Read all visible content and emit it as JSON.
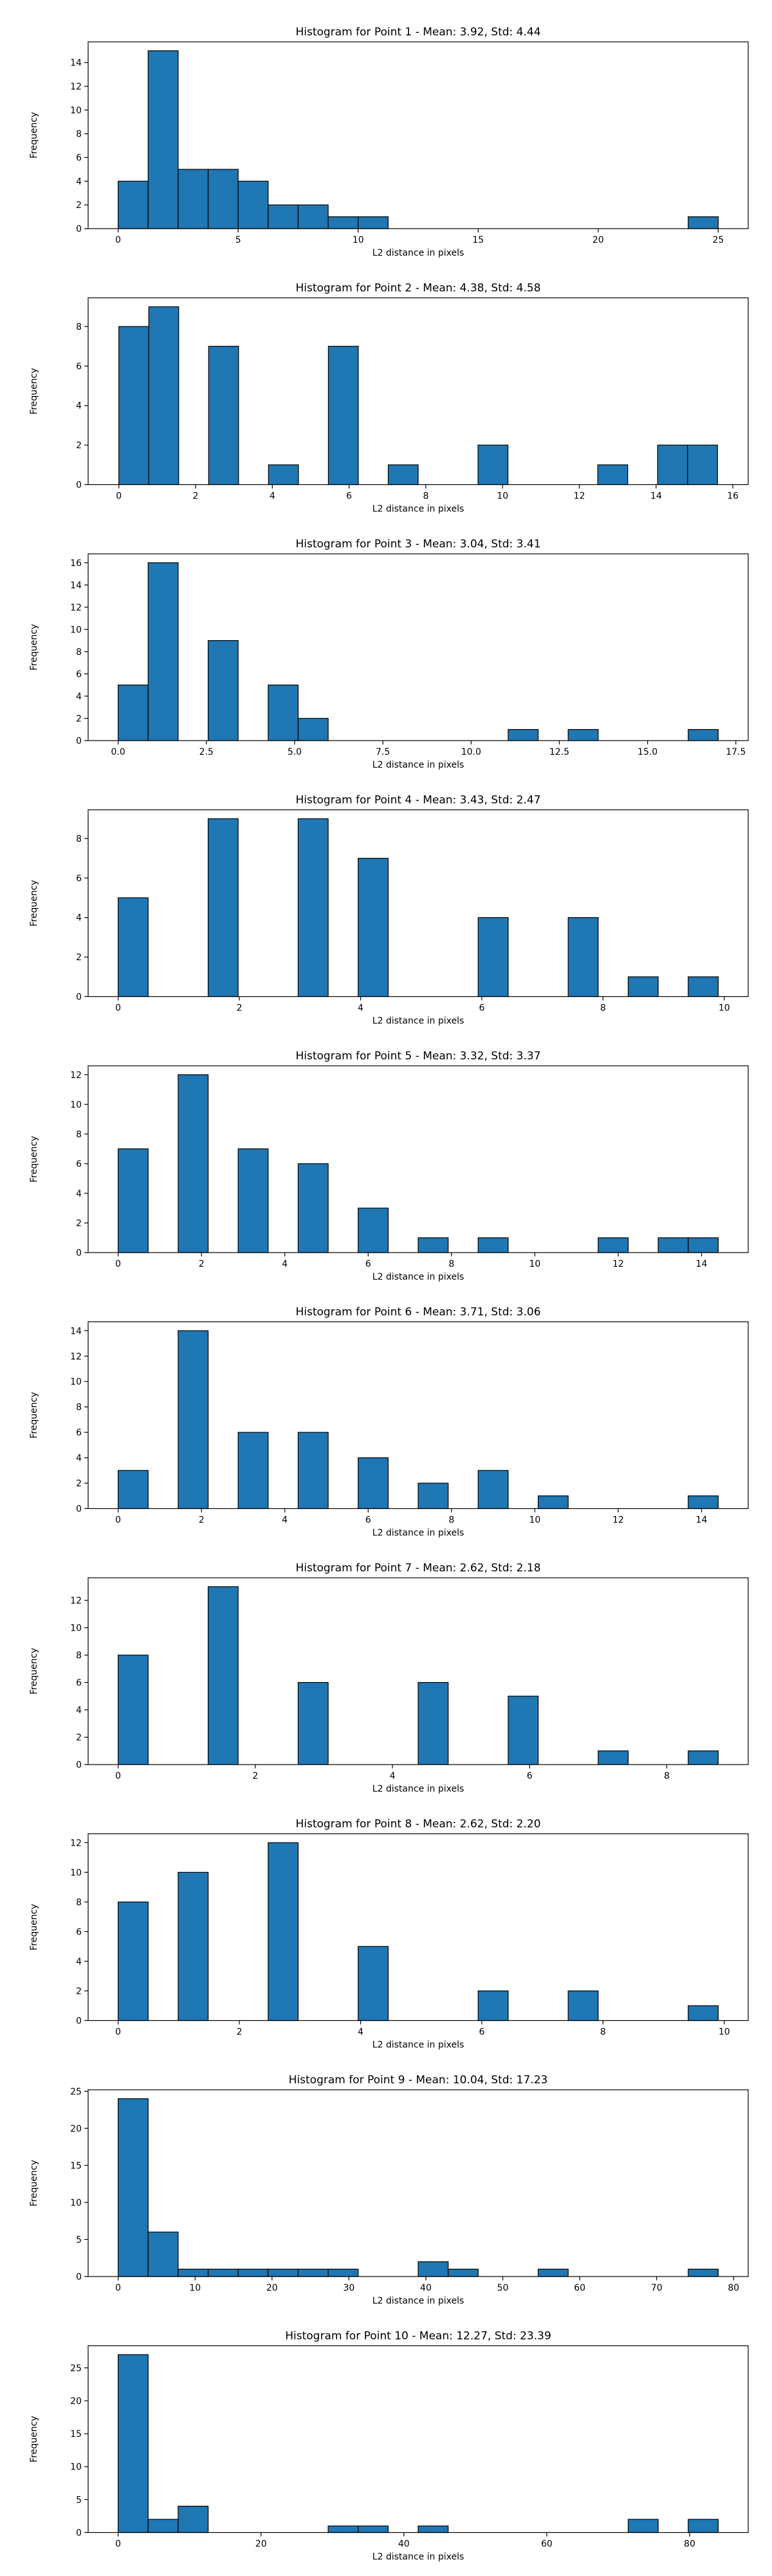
{
  "chart_data": [
    {
      "type": "bar",
      "title": "Histogram for Point 1 - Mean: 3.92, Std: 4.44",
      "xlabel": "L2 distance in pixels",
      "ylabel": "Frequency",
      "xlim": [
        -1.25,
        26.25
      ],
      "ylim": [
        0,
        15.75
      ],
      "xticks": [
        0,
        5,
        10,
        15,
        20,
        25
      ],
      "xtick_labels": [
        "0",
        "5",
        "10",
        "15",
        "20",
        "25"
      ],
      "yticks": [
        0,
        2,
        4,
        6,
        8,
        10,
        12,
        14
      ],
      "ytick_labels": [
        "0",
        "2",
        "4",
        "6",
        "8",
        "10",
        "12",
        "14"
      ],
      "bin_start": 0,
      "bin_width": 1.25,
      "values": [
        4,
        15,
        5,
        5,
        4,
        2,
        2,
        1,
        1,
        0,
        0,
        0,
        0,
        0,
        0,
        0,
        0,
        0,
        0,
        1
      ],
      "bar_color": "#1f77b4",
      "edge_color": "#000000"
    },
    {
      "type": "bar",
      "title": "Histogram for Point 2 - Mean: 4.38, Std: 4.58",
      "xlabel": "L2 distance in pixels",
      "ylabel": "Frequency",
      "xlim": [
        -0.8,
        16.4
      ],
      "ylim": [
        0,
        9.45
      ],
      "xticks": [
        0,
        2,
        4,
        6,
        8,
        10,
        12,
        14,
        16
      ],
      "xtick_labels": [
        "0",
        "2",
        "4",
        "6",
        "8",
        "10",
        "12",
        "14",
        "16"
      ],
      "yticks": [
        0,
        2,
        4,
        6,
        8
      ],
      "ytick_labels": [
        "0",
        "2",
        "4",
        "6",
        "8"
      ],
      "bin_start": 0,
      "bin_width": 0.78,
      "values": [
        8,
        9,
        0,
        7,
        0,
        1,
        0,
        7,
        0,
        1,
        0,
        0,
        2,
        0,
        0,
        0,
        1,
        0,
        2,
        2
      ],
      "bar_color": "#1f77b4",
      "edge_color": "#000000"
    },
    {
      "type": "bar",
      "title": "Histogram for Point 3 - Mean: 3.04, Std: 3.41",
      "xlabel": "L2 distance in pixels",
      "ylabel": "Frequency",
      "xlim": [
        -0.85,
        17.85
      ],
      "ylim": [
        0,
        16.8
      ],
      "xticks": [
        0,
        2.5,
        5,
        7.5,
        10,
        12.5,
        15,
        17.5
      ],
      "xtick_labels": [
        "0.0",
        "2.5",
        "5.0",
        "7.5",
        "10.0",
        "12.5",
        "15.0",
        "17.5"
      ],
      "yticks": [
        0,
        2,
        4,
        6,
        8,
        10,
        12,
        14,
        16
      ],
      "ytick_labels": [
        "0",
        "2",
        "4",
        "6",
        "8",
        "10",
        "12",
        "14",
        "16"
      ],
      "bin_start": 0,
      "bin_width": 0.85,
      "values": [
        5,
        16,
        0,
        9,
        0,
        5,
        2,
        0,
        0,
        0,
        0,
        0,
        0,
        1,
        0,
        1,
        0,
        0,
        0,
        1
      ],
      "bar_color": "#1f77b4",
      "edge_color": "#000000"
    },
    {
      "type": "bar",
      "title": "Histogram for Point 4 - Mean: 3.43, Std: 2.47",
      "xlabel": "L2 distance in pixels",
      "ylabel": "Frequency",
      "xlim": [
        -0.495,
        10.395
      ],
      "ylim": [
        0,
        9.45
      ],
      "xticks": [
        0,
        2,
        4,
        6,
        8,
        10
      ],
      "xtick_labels": [
        "0",
        "2",
        "4",
        "6",
        "8",
        "10"
      ],
      "yticks": [
        0,
        2,
        4,
        6,
        8
      ],
      "ytick_labels": [
        "0",
        "2",
        "4",
        "6",
        "8"
      ],
      "bin_start": 0,
      "bin_width": 0.495,
      "values": [
        5,
        0,
        0,
        9,
        0,
        0,
        9,
        0,
        7,
        0,
        0,
        0,
        4,
        0,
        0,
        4,
        0,
        1,
        0,
        1
      ],
      "bar_color": "#1f77b4",
      "edge_color": "#000000"
    },
    {
      "type": "bar",
      "title": "Histogram for Point 5 - Mean: 3.32, Std: 3.37",
      "xlabel": "L2 distance in pixels",
      "ylabel": "Frequency",
      "xlim": [
        -0.72,
        15.12
      ],
      "ylim": [
        0,
        12.6
      ],
      "xticks": [
        0,
        2,
        4,
        6,
        8,
        10,
        12,
        14
      ],
      "xtick_labels": [
        "0",
        "2",
        "4",
        "6",
        "8",
        "10",
        "12",
        "14"
      ],
      "yticks": [
        0,
        2,
        4,
        6,
        8,
        10,
        12
      ],
      "ytick_labels": [
        "0",
        "2",
        "4",
        "6",
        "8",
        "10",
        "12"
      ],
      "bin_start": 0,
      "bin_width": 0.72,
      "values": [
        7,
        0,
        12,
        0,
        7,
        0,
        6,
        0,
        3,
        0,
        1,
        0,
        1,
        0,
        0,
        0,
        1,
        0,
        1,
        1
      ],
      "bar_color": "#1f77b4",
      "edge_color": "#000000"
    },
    {
      "type": "bar",
      "title": "Histogram for Point 6 - Mean: 3.71, Std: 3.06",
      "xlabel": "L2 distance in pixels",
      "ylabel": "Frequency",
      "xlim": [
        -0.72,
        15.12
      ],
      "ylim": [
        0,
        14.7
      ],
      "xticks": [
        0,
        2,
        4,
        6,
        8,
        10,
        12,
        14
      ],
      "xtick_labels": [
        "0",
        "2",
        "4",
        "6",
        "8",
        "10",
        "12",
        "14"
      ],
      "yticks": [
        0,
        2,
        4,
        6,
        8,
        10,
        12,
        14
      ],
      "ytick_labels": [
        "0",
        "2",
        "4",
        "6",
        "8",
        "10",
        "12",
        "14"
      ],
      "bin_start": 0,
      "bin_width": 0.72,
      "values": [
        3,
        0,
        14,
        0,
        6,
        0,
        6,
        0,
        4,
        0,
        2,
        0,
        3,
        0,
        1,
        0,
        0,
        0,
        0,
        1
      ],
      "bar_color": "#1f77b4",
      "edge_color": "#000000"
    },
    {
      "type": "bar",
      "title": "Histogram for Point 7 - Mean: 2.62, Std: 2.18",
      "xlabel": "L2 distance in pixels",
      "ylabel": "Frequency",
      "xlim": [
        -0.4375,
        9.1875
      ],
      "ylim": [
        0,
        13.65
      ],
      "xticks": [
        0,
        2,
        4,
        6,
        8
      ],
      "xtick_labels": [
        "0",
        "2",
        "4",
        "6",
        "8"
      ],
      "yticks": [
        0,
        2,
        4,
        6,
        8,
        10,
        12
      ],
      "ytick_labels": [
        "0",
        "2",
        "4",
        "6",
        "8",
        "10",
        "12"
      ],
      "bin_start": 0,
      "bin_width": 0.4375,
      "values": [
        8,
        0,
        0,
        13,
        0,
        0,
        6,
        0,
        0,
        0,
        6,
        0,
        0,
        5,
        0,
        0,
        1,
        0,
        0,
        1
      ],
      "bar_color": "#1f77b4",
      "edge_color": "#000000"
    },
    {
      "type": "bar",
      "title": "Histogram for Point 8 - Mean: 2.62, Std: 2.20",
      "xlabel": "L2 distance in pixels",
      "ylabel": "Frequency",
      "xlim": [
        -0.495,
        10.395
      ],
      "ylim": [
        0,
        12.6
      ],
      "xticks": [
        0,
        2,
        4,
        6,
        8,
        10
      ],
      "xtick_labels": [
        "0",
        "2",
        "4",
        "6",
        "8",
        "10"
      ],
      "yticks": [
        0,
        2,
        4,
        6,
        8,
        10,
        12
      ],
      "ytick_labels": [
        "0",
        "2",
        "4",
        "6",
        "8",
        "10",
        "12"
      ],
      "bin_start": 0,
      "bin_width": 0.495,
      "values": [
        8,
        0,
        10,
        0,
        0,
        12,
        0,
        0,
        5,
        0,
        0,
        0,
        2,
        0,
        0,
        2,
        0,
        0,
        0,
        1
      ],
      "bar_color": "#1f77b4",
      "edge_color": "#000000"
    },
    {
      "type": "bar",
      "title": "Histogram for Point 9 - Mean: 10.04, Std: 17.23",
      "xlabel": "L2 distance in pixels",
      "ylabel": "Frequency",
      "xlim": [
        -3.9,
        81.9
      ],
      "ylim": [
        0,
        25.2
      ],
      "xticks": [
        0,
        10,
        20,
        30,
        40,
        50,
        60,
        70,
        80
      ],
      "xtick_labels": [
        "0",
        "10",
        "20",
        "30",
        "40",
        "50",
        "60",
        "70",
        "80"
      ],
      "yticks": [
        0,
        5,
        10,
        15,
        20,
        25
      ],
      "ytick_labels": [
        "0",
        "5",
        "10",
        "15",
        "20",
        "25"
      ],
      "bin_start": 0,
      "bin_width": 3.9,
      "values": [
        24,
        6,
        1,
        1,
        1,
        1,
        1,
        1,
        0,
        0,
        2,
        1,
        0,
        0,
        1,
        0,
        0,
        0,
        0,
        1
      ],
      "bar_color": "#1f77b4",
      "edge_color": "#000000"
    },
    {
      "type": "bar",
      "title": "Histogram for Point 10 - Mean: 12.27, Std: 23.39",
      "xlabel": "L2 distance in pixels",
      "ylabel": "Frequency",
      "xlim": [
        -4.2,
        88.2
      ],
      "ylim": [
        0,
        28.35
      ],
      "xticks": [
        0,
        20,
        40,
        60,
        80
      ],
      "xtick_labels": [
        "0",
        "20",
        "40",
        "60",
        "80"
      ],
      "yticks": [
        0,
        5,
        10,
        15,
        20,
        25
      ],
      "ytick_labels": [
        "0",
        "5",
        "10",
        "15",
        "20",
        "25"
      ],
      "bin_start": 0,
      "bin_width": 4.2,
      "values": [
        27,
        2,
        4,
        0,
        0,
        0,
        0,
        1,
        1,
        0,
        1,
        0,
        0,
        0,
        0,
        0,
        0,
        2,
        0,
        2
      ],
      "bar_color": "#1f77b4",
      "edge_color": "#000000"
    }
  ]
}
